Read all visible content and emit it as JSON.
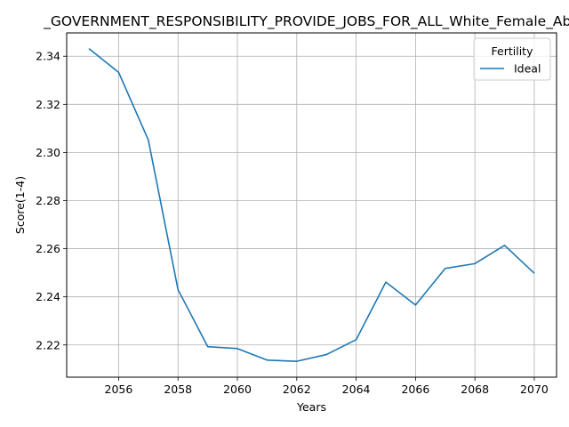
{
  "chart_data": {
    "type": "line",
    "title": "_GOVERNMENT_RESPONSIBILITY_PROVIDE_JOBS_FOR_ALL_White_Female_Abo",
    "xlabel": "Years",
    "ylabel": "Score(1-4)",
    "xlim": [
      2054.25,
      2070.75
    ],
    "ylim": [
      2.2066,
      2.3497
    ],
    "x_ticks": [
      2056,
      2058,
      2060,
      2062,
      2064,
      2066,
      2068,
      2070
    ],
    "y_ticks": [
      2.22,
      2.24,
      2.26,
      2.28,
      2.3,
      2.32,
      2.34
    ],
    "y_tick_labels": [
      "2.22",
      "2.24",
      "2.26",
      "2.28",
      "2.30",
      "2.32",
      "2.34"
    ],
    "grid": true,
    "legend": {
      "title": "Fertility",
      "placement": "top-right"
    },
    "line_color": "#1f77b4",
    "x": [
      2055,
      2056,
      2057,
      2058,
      2059,
      2060,
      2061,
      2062,
      2063,
      2064,
      2065,
      2066,
      2067,
      2068,
      2069,
      2070
    ],
    "series": [
      {
        "name": "Ideal",
        "values": [
          2.3432,
          2.3333,
          2.3052,
          2.243,
          2.2193,
          2.2185,
          2.2137,
          2.2132,
          2.216,
          2.2222,
          2.2461,
          2.2366,
          2.2518,
          2.2538,
          2.2614,
          2.2498
        ]
      }
    ]
  }
}
